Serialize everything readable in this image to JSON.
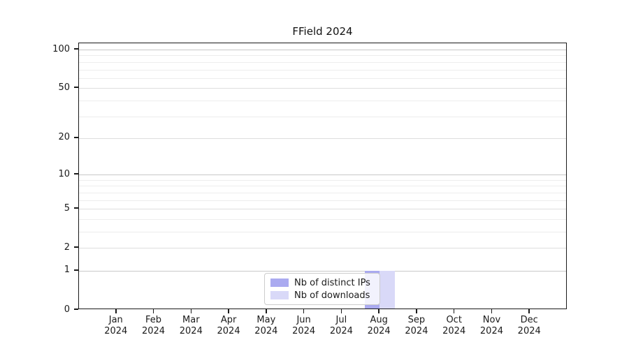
{
  "title": "FField 2024",
  "chart_data": {
    "type": "bar",
    "title": "FField 2024",
    "categories": [
      "Jan 2024",
      "Feb 2024",
      "Mar 2024",
      "Apr 2024",
      "May 2024",
      "Jun 2024",
      "Jul 2024",
      "Aug 2024",
      "Sep 2024",
      "Oct 2024",
      "Nov 2024",
      "Dec 2024"
    ],
    "x_tick_month": [
      "Jan",
      "Feb",
      "Mar",
      "Apr",
      "May",
      "Jun",
      "Jul",
      "Aug",
      "Sep",
      "Oct",
      "Nov",
      "Dec"
    ],
    "x_tick_year": [
      "2024",
      "2024",
      "2024",
      "2024",
      "2024",
      "2024",
      "2024",
      "2024",
      "2024",
      "2024",
      "2024",
      "2024"
    ],
    "series": [
      {
        "name": "Nb of distinct IPs",
        "color": "#aaaaf0",
        "values": [
          0,
          0,
          0,
          0,
          0,
          0,
          0,
          1,
          0,
          0,
          0,
          0
        ]
      },
      {
        "name": "Nb of downloads",
        "color": "#d9d9f8",
        "values": [
          0,
          0,
          0,
          0,
          0,
          0,
          0,
          1,
          0,
          0,
          0,
          0
        ]
      }
    ],
    "xlabel": "",
    "ylabel": "",
    "yscale": "log1p",
    "ylim": [
      0,
      112
    ],
    "y_major_ticks": [
      0,
      1,
      2,
      5,
      10,
      20,
      50,
      100
    ],
    "y_minor_ticks": [
      3,
      4,
      6,
      7,
      8,
      9,
      30,
      40,
      60,
      70,
      80,
      90
    ],
    "grid": "horizontal",
    "legend_position": "lower center",
    "grid_color_major": "#c8c8c8",
    "grid_color_labeled_minor": "#dedede",
    "grid_color_minor": "#ededed"
  },
  "legend": {
    "items": [
      {
        "label": "Nb of distinct IPs",
        "color": "#aaaaf0"
      },
      {
        "label": "Nb of downloads",
        "color": "#d9d9f8"
      }
    ]
  }
}
